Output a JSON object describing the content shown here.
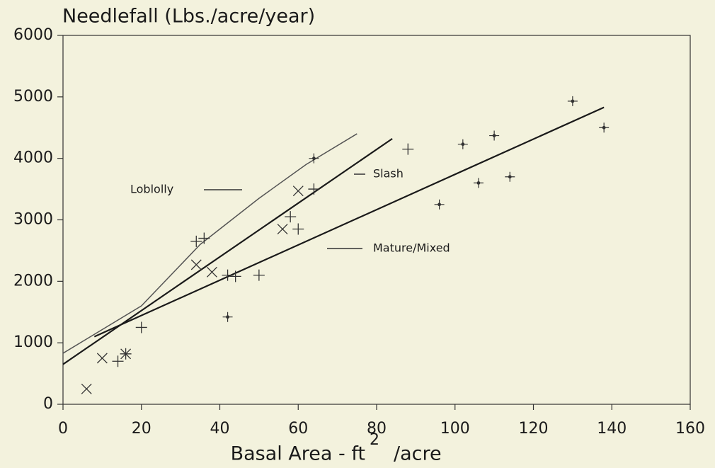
{
  "chart_data": {
    "type": "scatter",
    "title": "Needlefall (Lbs./acre/year)",
    "x_label": "Basal Area - ft",
    "x_label_sup": "2",
    "x_label_end": "/acre",
    "xlim": [
      0,
      160
    ],
    "xticks": [
      0,
      20,
      40,
      60,
      80,
      100,
      120,
      140,
      160
    ],
    "ylim": [
      0,
      6000
    ],
    "yticks": [
      0,
      1000,
      2000,
      3000,
      4000,
      5000,
      6000
    ],
    "series": [
      {
        "name": "Loblolly",
        "color": "#555555",
        "x": [
          0,
          20,
          35,
          50,
          62,
          75
        ],
        "y": [
          830,
          1600,
          2600,
          3350,
          3900,
          4400
        ]
      },
      {
        "name": "Slash",
        "color": "#1a1a1a",
        "x": [
          0,
          84
        ],
        "y": [
          650,
          4320
        ]
      },
      {
        "name": "Mature/Mixed",
        "color": "#1a1a1a",
        "x": [
          8,
          138
        ],
        "y": [
          1100,
          4830
        ]
      }
    ],
    "points": [
      {
        "marker": "x",
        "color": "#333333",
        "x": [
          6,
          10,
          16,
          34,
          38,
          56,
          60
        ],
        "y": [
          250,
          750,
          820,
          2270,
          2150,
          2850,
          3470
        ]
      },
      {
        "marker": "plus",
        "color": "#333333",
        "x": [
          14,
          16,
          20,
          34,
          36,
          42,
          44,
          50,
          58,
          60,
          64,
          88
        ],
        "y": [
          700,
          820,
          1250,
          2650,
          2700,
          2100,
          2080,
          2100,
          3050,
          2850,
          3500,
          4150
        ]
      },
      {
        "marker": "dotplus",
        "color": "#333333",
        "x": [
          42,
          64,
          96,
          102,
          106,
          110,
          114,
          130,
          138
        ],
        "y": [
          1420,
          4000,
          3250,
          4230,
          3600,
          4370,
          3700,
          4930,
          4500
        ]
      }
    ]
  }
}
